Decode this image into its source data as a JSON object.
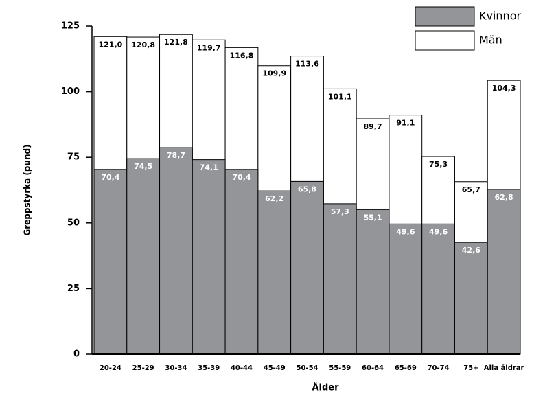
{
  "chart_data": {
    "type": "bar",
    "barmode": "overlay",
    "x_label": "Ålder",
    "y_label": "Greppstyrka (pund)",
    "categories": [
      "20-24",
      "25-29",
      "30-34",
      "35-39",
      "40-44",
      "45-49",
      "50-54",
      "55-59",
      "60-64",
      "65-69",
      "70-74",
      "75+",
      "Alla åldrar"
    ],
    "series": [
      {
        "name": "Kvinnor",
        "color": "#939598",
        "values": [
          70.4,
          74.5,
          78.7,
          74.1,
          70.4,
          62.2,
          65.8,
          57.3,
          55.1,
          49.6,
          49.6,
          42.6,
          62.8
        ],
        "value_labels": [
          "70,4",
          "74,5",
          "78,7",
          "74,1",
          "70,4",
          "62,2",
          "65,8",
          "57,3",
          "55,1",
          "49,6",
          "49,6",
          "42,6",
          "62,8"
        ]
      },
      {
        "name": "Män",
        "color": "#ffffff",
        "values": [
          121.0,
          120.8,
          121.8,
          119.7,
          116.8,
          109.9,
          113.6,
          101.1,
          89.7,
          91.1,
          75.3,
          65.7,
          104.3
        ],
        "value_labels": [
          "121,0",
          "120,8",
          "121,8",
          "119,7",
          "116,8",
          "109,9",
          "113,6",
          "101,1",
          "89,7",
          "91,1",
          "75,3",
          "65,7",
          "104,3"
        ]
      }
    ],
    "ylim": [
      0,
      125
    ],
    "yticks": [
      0,
      25,
      50,
      75,
      100,
      125
    ],
    "grid": false,
    "legend": "top-right"
  }
}
